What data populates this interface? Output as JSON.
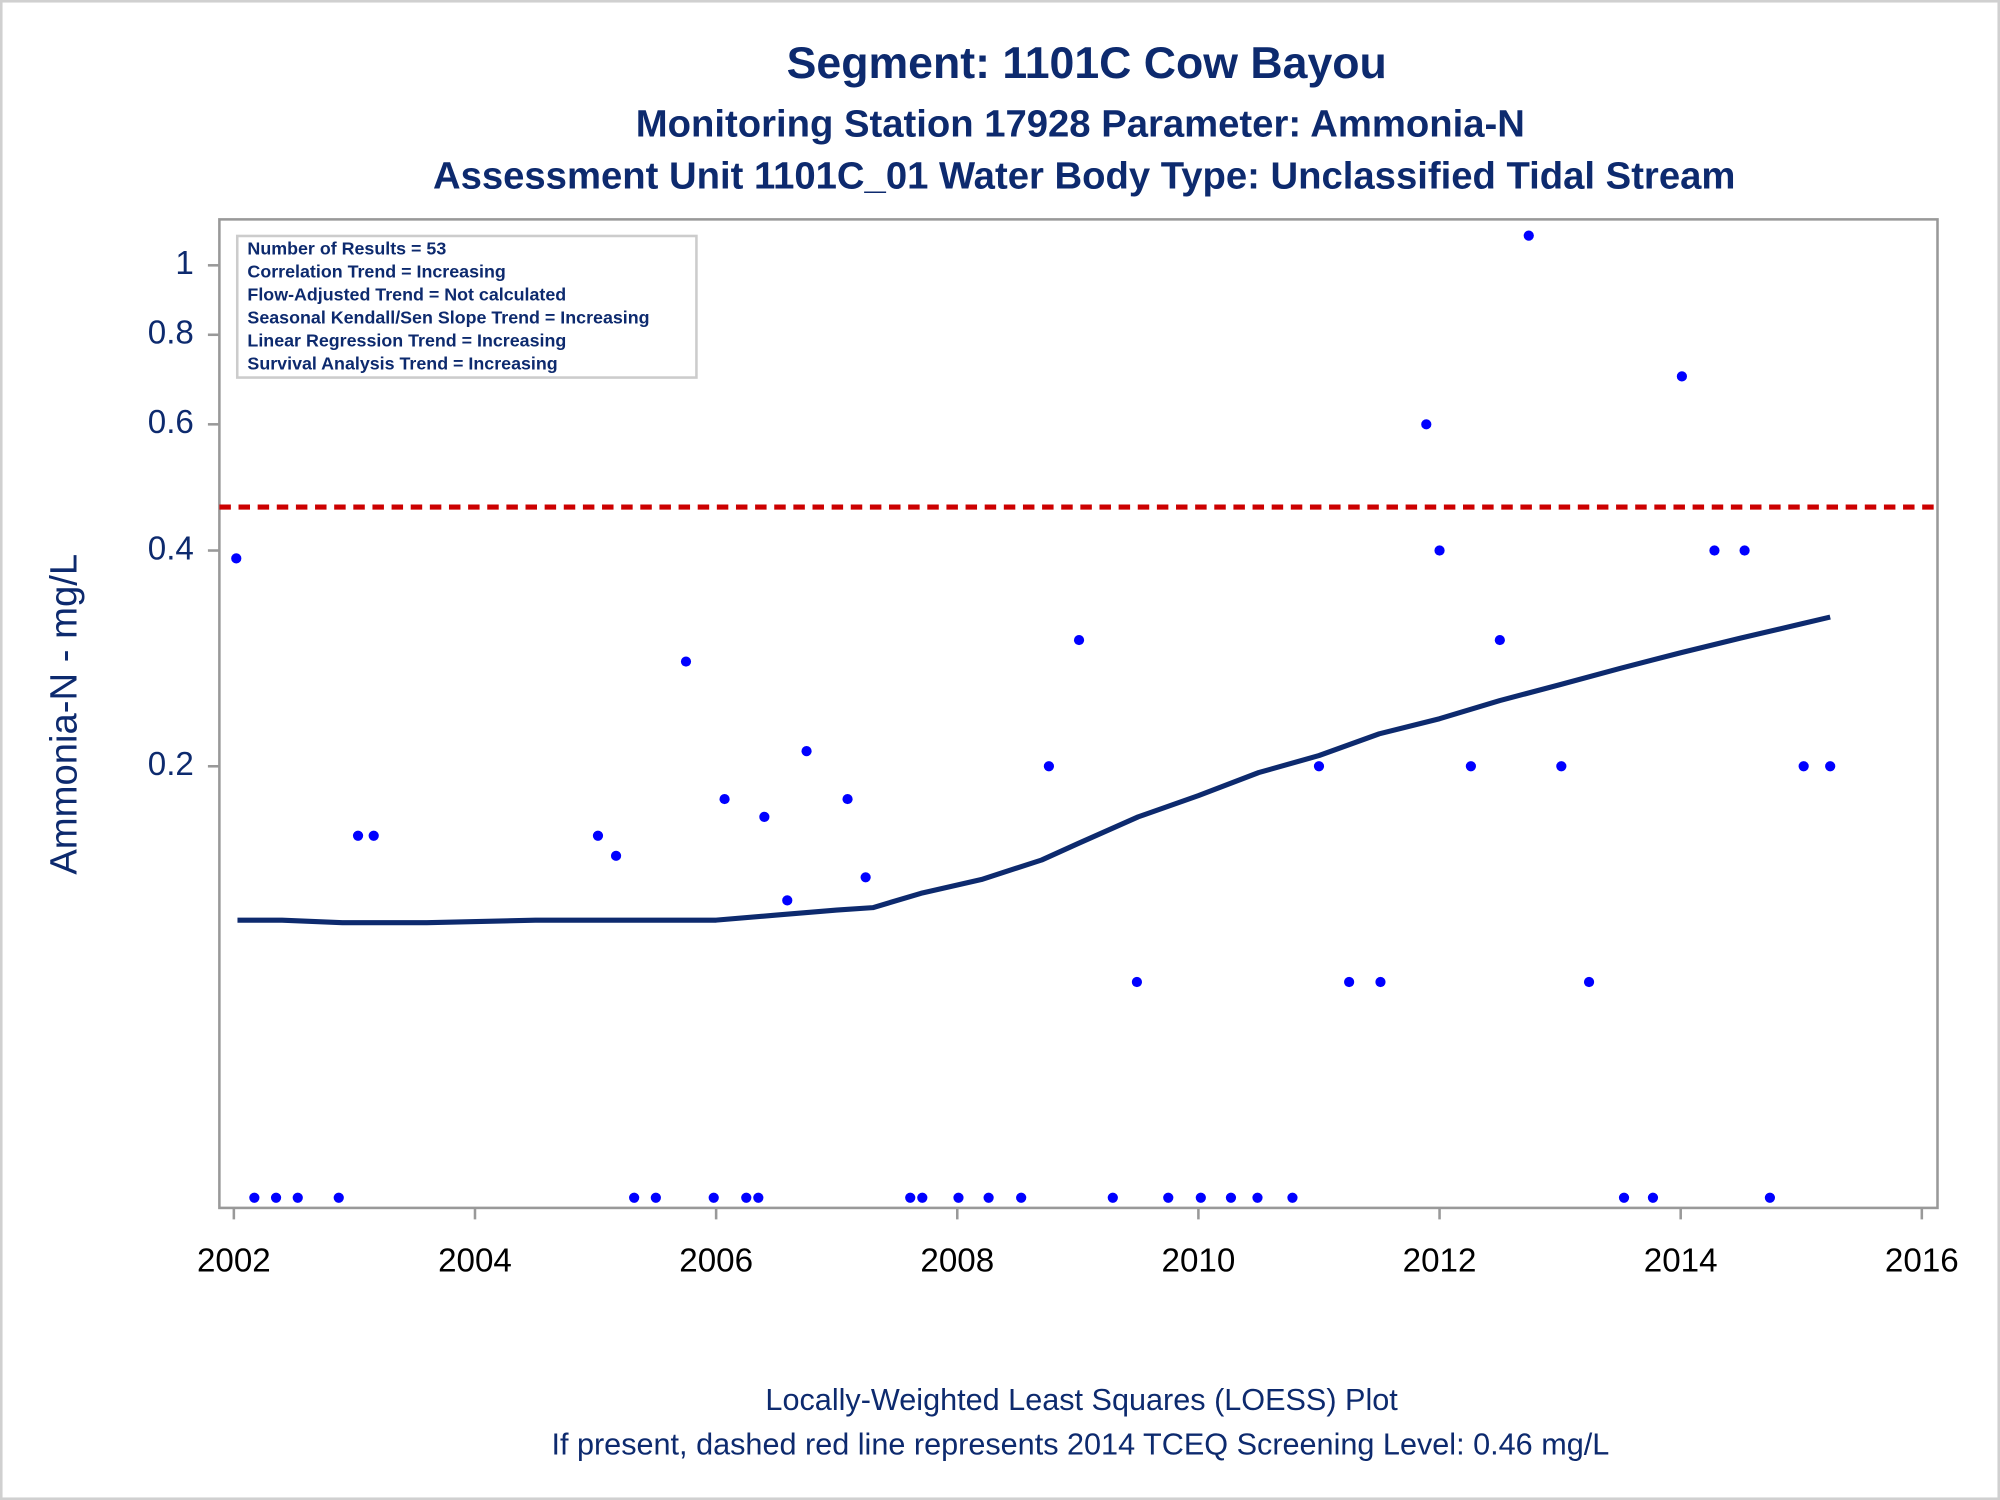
{
  "chart_data": {
    "type": "scatter",
    "title": "Segment: 1101C  Cow Bayou",
    "subtitle": "Monitoring Station 17928 Parameter: Ammonia-N",
    "subtitle2": "Assessment Unit 1101C_01   Water Body Type: Unclassified Tidal Stream",
    "ylabel": "Ammonia-N - mg/L",
    "notes": [
      "Locally-Weighted Least Squares (LOESS) Plot",
      "If present, dashed red line represents 2014 TCEQ Screening Level: 0.46 mg/L"
    ],
    "annotations": [
      "Number of Results = 53",
      "Correlation Trend = Increasing",
      "Flow-Adjusted Trend = Not calculated",
      "Seasonal Kendall/Sen Slope Trend = Increasing",
      "Linear Regression Trend = Increasing",
      "Survival Analysis Trend = Increasing"
    ],
    "log_y": true,
    "xlim": [
      2001.88,
      2016.13
    ],
    "xticks": [
      2002,
      2004,
      2006,
      2008,
      2010,
      2012,
      2014,
      2016
    ],
    "ylim": [
      0.0484,
      1.159
    ],
    "yticks": [
      0.2,
      0.4,
      0.6,
      0.8,
      1
    ],
    "reference_line": 0.46,
    "reference_color": "#cc0000",
    "series": [
      {
        "type": "scatter",
        "color": "#0000ff",
        "x": [
          2002.02,
          2002.17,
          2002.35,
          2002.53,
          2002.87,
          2003.03,
          2003.16,
          2005.02,
          2005.17,
          2005.32,
          2005.5,
          2005.75,
          2005.98,
          2006.07,
          2006.25,
          2006.35,
          2006.4,
          2006.59,
          2006.75,
          2007.09,
          2007.24,
          2007.61,
          2007.71,
          2008.01,
          2008.26,
          2008.53,
          2008.76,
          2009.01,
          2009.29,
          2009.49,
          2009.75,
          2010.02,
          2010.27,
          2010.49,
          2010.78,
          2011.0,
          2011.25,
          2011.51,
          2011.89,
          2012.0,
          2012.26,
          2012.5,
          2012.74,
          2013.01,
          2013.24,
          2013.53,
          2013.77,
          2014.01,
          2014.28,
          2014.53,
          2014.74,
          2015.02,
          2015.24
        ],
        "values": [
          0.39,
          0.05,
          0.05,
          0.05,
          0.05,
          0.16,
          0.16,
          0.16,
          0.15,
          0.05,
          0.05,
          0.28,
          0.05,
          0.18,
          0.05,
          0.05,
          0.17,
          0.13,
          0.21,
          0.18,
          0.14,
          0.05,
          0.05,
          0.05,
          0.05,
          0.05,
          0.2,
          0.3,
          0.05,
          0.1,
          0.05,
          0.05,
          0.05,
          0.05,
          0.05,
          0.2,
          0.1,
          0.1,
          0.6,
          0.4,
          0.2,
          0.3,
          1.1,
          0.2,
          0.1,
          0.05,
          0.05,
          0.7,
          0.4,
          0.4,
          0.05,
          0.2,
          0.2
        ]
      },
      {
        "type": "line",
        "color": "#0d2a6e",
        "x": [
          2002.03,
          2002.4,
          2002.9,
          2003.6,
          2004.5,
          2005.5,
          2006.0,
          2006.5,
          2007.0,
          2007.3,
          2007.7,
          2008.2,
          2008.7,
          2009.0,
          2009.5,
          2010.0,
          2010.5,
          2011.0,
          2011.5,
          2012.0,
          2012.5,
          2013.0,
          2013.5,
          2014.0,
          2014.5,
          2015.0,
          2015.24
        ],
        "values": [
          0.122,
          0.122,
          0.121,
          0.121,
          0.122,
          0.122,
          0.122,
          0.124,
          0.126,
          0.127,
          0.133,
          0.139,
          0.148,
          0.156,
          0.17,
          0.182,
          0.196,
          0.207,
          0.222,
          0.233,
          0.247,
          0.26,
          0.274,
          0.288,
          0.302,
          0.316,
          0.323
        ]
      }
    ]
  }
}
